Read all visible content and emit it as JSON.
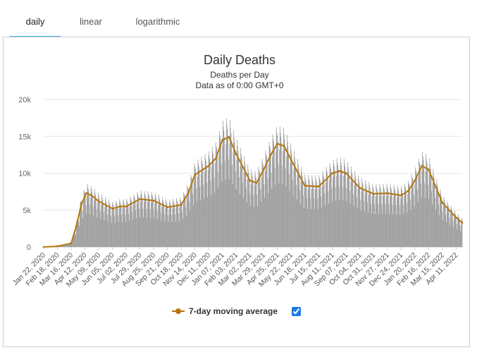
{
  "tabs": [
    {
      "label": "daily",
      "active": true
    },
    {
      "label": "linear",
      "active": false
    },
    {
      "label": "logarithmic",
      "active": false
    }
  ],
  "legend": {
    "label": "7-day moving average",
    "checked": true
  },
  "colors": {
    "bars": "#999999",
    "line": "#b5760f",
    "tab_accent": "#3cb3e8",
    "checkbox": "#1f78e6"
  },
  "chart_data": {
    "type": "bar",
    "title": "Daily Deaths",
    "subtitle": "Deaths per Day",
    "note": "Data as of 0:00 GMT+0",
    "ylim": [
      0,
      20000
    ],
    "y_ticks": [
      0,
      5000,
      10000,
      15000,
      20000
    ],
    "y_tick_labels": [
      "0",
      "5k",
      "10k",
      "15k",
      "20k"
    ],
    "x_tick_labels": [
      "Jan 22, 2020",
      "Feb 18, 2020",
      "Mar 16, 2020",
      "Apr 12, 2020",
      "May 09, 2020",
      "Jun 05, 2020",
      "Jul 02, 2020",
      "Jul 29, 2020",
      "Aug 25, 2020",
      "Sep 21, 2020",
      "Oct 18, 2020",
      "Nov 14, 2020",
      "Dec 11, 2020",
      "Jan 07, 2021",
      "Feb 03, 2021",
      "Mar 02, 2021",
      "Mar 29, 2021",
      "Apr 25, 2021",
      "May 22, 2021",
      "Jun 18, 2021",
      "Jul 15, 2021",
      "Aug 11, 2021",
      "Sep 07, 2021",
      "Oct 04, 2021",
      "Oct 31, 2021",
      "Nov 27, 2021",
      "Dec 24, 2021",
      "Jan 20, 2022",
      "Feb 16, 2022",
      "Mar 15, 2022",
      "Apr 11, 2022"
    ],
    "x_tick_interval_days": 27,
    "start_date": "Jan 22, 2020",
    "end_date": "Apr 23, 2022",
    "grid": true,
    "legend_position": "bottom",
    "series": [
      {
        "name": "7-day moving average",
        "kind": "line",
        "x": [
          "Jan 22, 2020",
          "Feb 18, 2020",
          "Mar 16, 2020",
          "Mar 26, 2020",
          "Apr 05, 2020",
          "Apr 15, 2020",
          "Apr 25, 2020",
          "May 09, 2020",
          "Jun 05, 2020",
          "Jun 20, 2020",
          "Jul 02, 2020",
          "Jul 29, 2020",
          "Aug 25, 2020",
          "Sep 21, 2020",
          "Oct 18, 2020",
          "Nov 01, 2020",
          "Nov 14, 2020",
          "Dec 11, 2020",
          "Dec 25, 2020",
          "Jan 07, 2021",
          "Jan 20, 2021",
          "Feb 03, 2021",
          "Mar 02, 2021",
          "Mar 15, 2021",
          "Mar 29, 2021",
          "Apr 12, 2021",
          "Apr 25, 2021",
          "May 08, 2021",
          "May 22, 2021",
          "Jun 18, 2021",
          "Jul 15, 2021",
          "Aug 11, 2021",
          "Aug 25, 2021",
          "Sep 07, 2021",
          "Oct 04, 2021",
          "Oct 31, 2021",
          "Nov 27, 2021",
          "Dec 24, 2021",
          "Jan 07, 2022",
          "Jan 20, 2022",
          "Feb 03, 2022",
          "Feb 16, 2022",
          "Mar 15, 2022",
          "Apr 11, 2022",
          "Apr 23, 2022"
        ],
        "values": [
          0,
          100,
          500,
          2800,
          5800,
          7300,
          7000,
          6200,
          5200,
          5500,
          5500,
          6500,
          6300,
          5400,
          5700,
          7300,
          9800,
          11000,
          12000,
          14500,
          14900,
          12600,
          9000,
          8700,
          10500,
          12500,
          14000,
          13700,
          11800,
          8300,
          8200,
          10000,
          10300,
          10000,
          8000,
          7200,
          7300,
          7000,
          7600,
          9000,
          11000,
          10500,
          6000,
          4000,
          3300
        ]
      }
    ]
  }
}
